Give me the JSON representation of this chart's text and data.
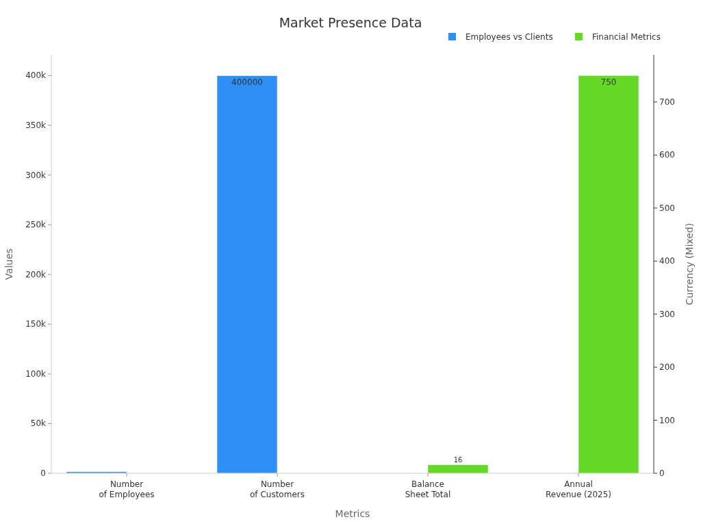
{
  "chart_data": {
    "type": "bar",
    "title": "Market Presence Data",
    "xlabel": "Metrics",
    "ylabel": "Values",
    "y2label": "Currency (Mixed)",
    "categories": [
      "Number\nof Employees",
      "Number\nof Customers",
      "Balance\nSheet Total",
      "Annual\nRevenue (2025)"
    ],
    "series": [
      {
        "name": "Employees vs Clients",
        "color": "#2e8ff7",
        "values": [
          1500,
          400000,
          null,
          null
        ],
        "value_labels": [
          null,
          "400000",
          null,
          null
        ]
      },
      {
        "name": "Financial Metrics",
        "color": "#66d926",
        "axis": "y2",
        "values": [
          null,
          null,
          16,
          750
        ],
        "value_labels": [
          null,
          null,
          "16",
          "750"
        ]
      }
    ],
    "ylim": [
      0,
      421000
    ],
    "yticks": [
      0,
      {
        "value": 50000,
        "label": "50k"
      },
      {
        "value": 100000,
        "label": "100k"
      },
      {
        "value": 150000,
        "label": "150k"
      },
      {
        "value": 200000,
        "label": "200k"
      },
      {
        "value": 250000,
        "label": "250k"
      },
      {
        "value": 300000,
        "label": "300k"
      },
      {
        "value": 350000,
        "label": "350k"
      },
      {
        "value": 400000,
        "label": "400k"
      }
    ],
    "y2lim": [
      0,
      789
    ],
    "y2ticks": [
      0,
      100,
      200,
      300,
      400,
      500,
      600,
      700
    ],
    "grid": false,
    "legend": "top right"
  }
}
